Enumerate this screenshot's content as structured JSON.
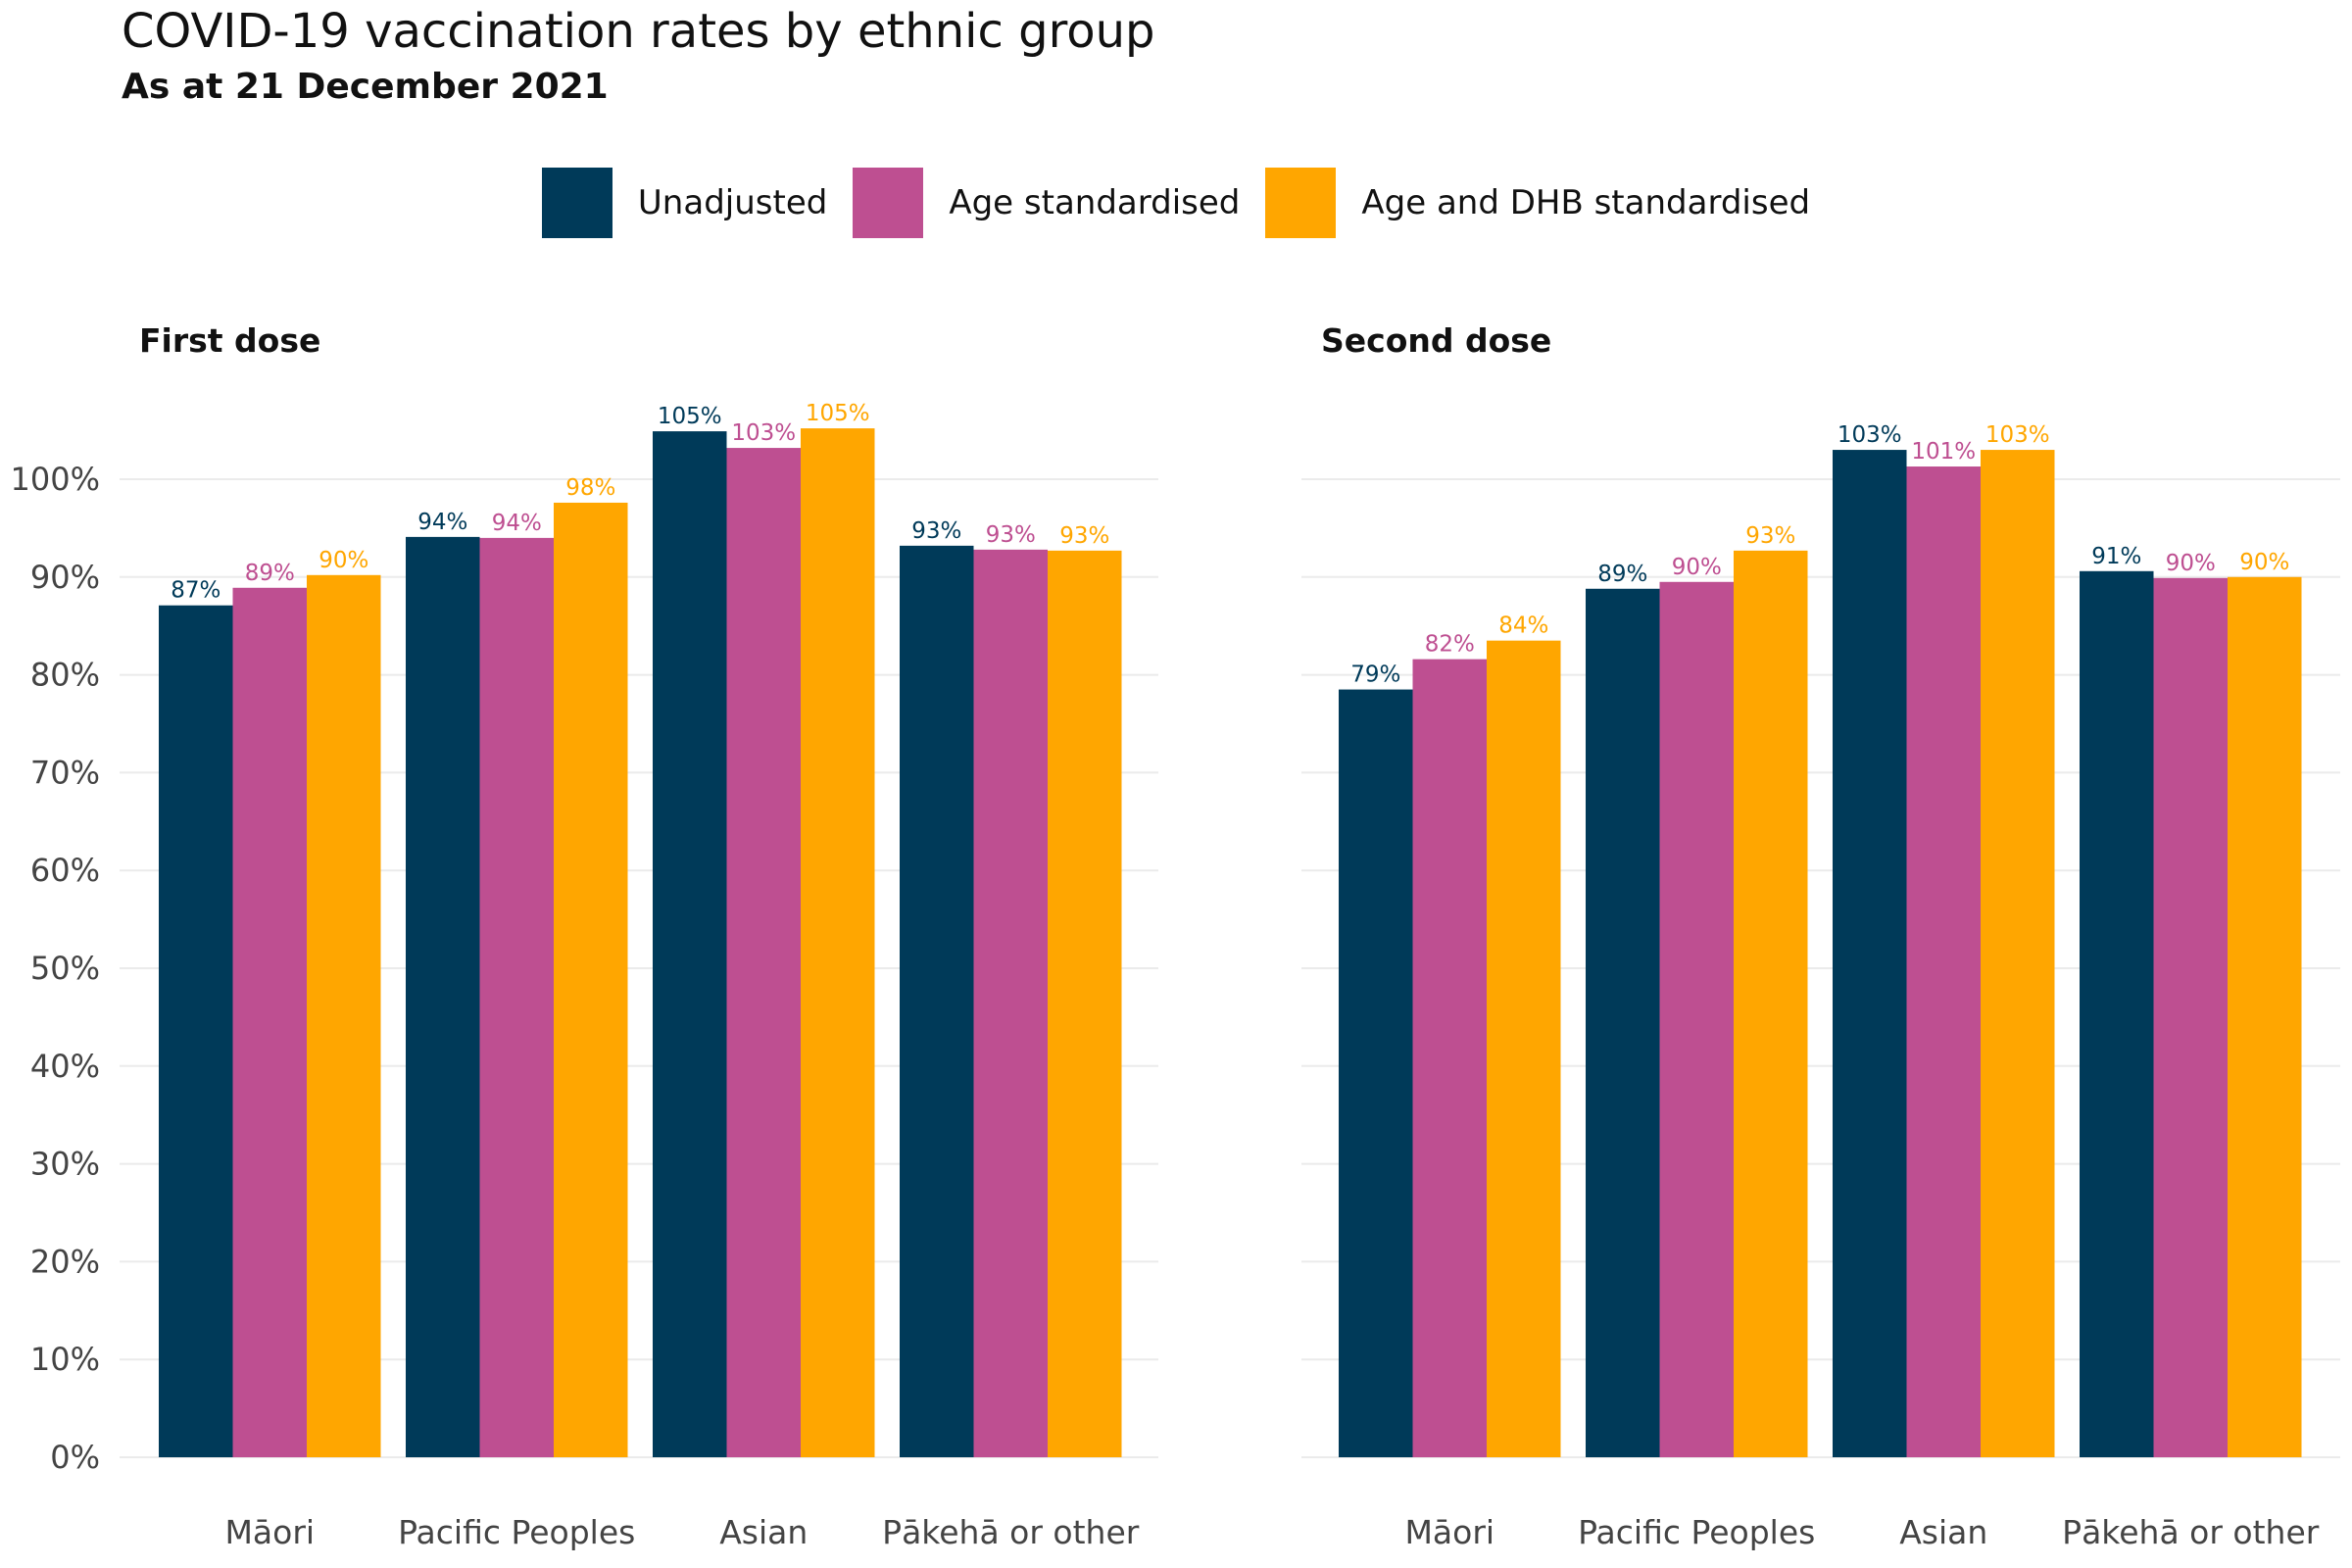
{
  "header": {
    "title": "COVID-19 vaccination rates by ethnic group",
    "subtitle": "As at 21 December 2021"
  },
  "legend": [
    {
      "label": "Unadjusted",
      "color": "#003A59"
    },
    {
      "label": "Age standardised",
      "color": "#BE4F91"
    },
    {
      "label": "Age and DHB standardised",
      "color": "#FFA600"
    }
  ],
  "chart_data": {
    "type": "bar",
    "legend_position": "top",
    "grid": true,
    "ylim": [
      0,
      105
    ],
    "y_ticks": [
      "0%",
      "10%",
      "20%",
      "30%",
      "40%",
      "50%",
      "60%",
      "70%",
      "80%",
      "90%",
      "100%"
    ],
    "categories": [
      "Māori",
      "Pacific Peoples",
      "Asian",
      "Pākehā or other"
    ],
    "panels": [
      {
        "title": "First dose",
        "series": [
          {
            "name": "Unadjusted",
            "values": [
              87.1,
              94.1,
              104.9,
              93.2
            ],
            "labels": [
              "87%",
              "94%",
              "105%",
              "93%"
            ]
          },
          {
            "name": "Age standardised",
            "values": [
              88.9,
              94.0,
              103.2,
              92.8
            ],
            "labels": [
              "89%",
              "94%",
              "103%",
              "93%"
            ]
          },
          {
            "name": "Age and DHB standardised",
            "values": [
              90.2,
              97.6,
              105.2,
              92.7
            ],
            "labels": [
              "90%",
              "98%",
              "105%",
              "93%"
            ]
          }
        ]
      },
      {
        "title": "Second dose",
        "series": [
          {
            "name": "Unadjusted",
            "values": [
              78.5,
              88.8,
              103.0,
              90.6
            ],
            "labels": [
              "79%",
              "89%",
              "103%",
              "91%"
            ]
          },
          {
            "name": "Age standardised",
            "values": [
              81.6,
              89.5,
              101.3,
              89.9
            ],
            "labels": [
              "82%",
              "90%",
              "101%",
              "90%"
            ]
          },
          {
            "name": "Age and DHB standardised",
            "values": [
              83.5,
              92.7,
              103.0,
              90.0
            ],
            "labels": [
              "84%",
              "93%",
              "103%",
              "90%"
            ]
          }
        ]
      }
    ]
  }
}
